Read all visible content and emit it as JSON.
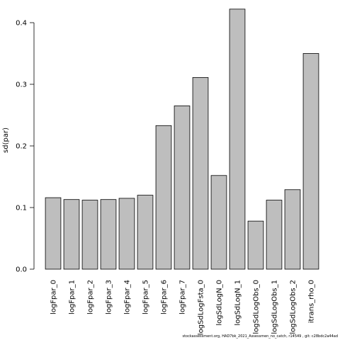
{
  "chart_data": {
    "type": "bar",
    "categories": [
      "logFpar_0",
      "logFpar_1",
      "logFpar_2",
      "logFpar_3",
      "logFpar_4",
      "logFpar_5",
      "logFpar_6",
      "logFpar_7",
      "logSdLogFsta_0",
      "logSdLogN_0",
      "logSdLogN_1",
      "logSdLogObs_0",
      "logSdLogObs_1",
      "logSdLogObs_2",
      "itrans_rho_0"
    ],
    "values": [
      0.116,
      0.113,
      0.112,
      0.113,
      0.115,
      0.12,
      0.233,
      0.265,
      0.311,
      0.152,
      0.422,
      0.078,
      0.112,
      0.129,
      0.35
    ],
    "title": "",
    "xlabel": "",
    "ylabel": "sd(par)",
    "ylim": [
      0,
      0.4
    ],
    "yticks": [
      0.0,
      0.1,
      0.2,
      0.3,
      0.4
    ],
    "ytick_labels": [
      "0.0",
      "0.1",
      "0.2",
      "0.3",
      "0.4"
    ],
    "bar_color": "#bebebe",
    "edge_color": "#000000",
    "grid": false
  },
  "footer_text": "stockassessment.org, HAD7bk_2021_Assessmen_no_catch, r14549 , git: c28bdc2a44ad"
}
